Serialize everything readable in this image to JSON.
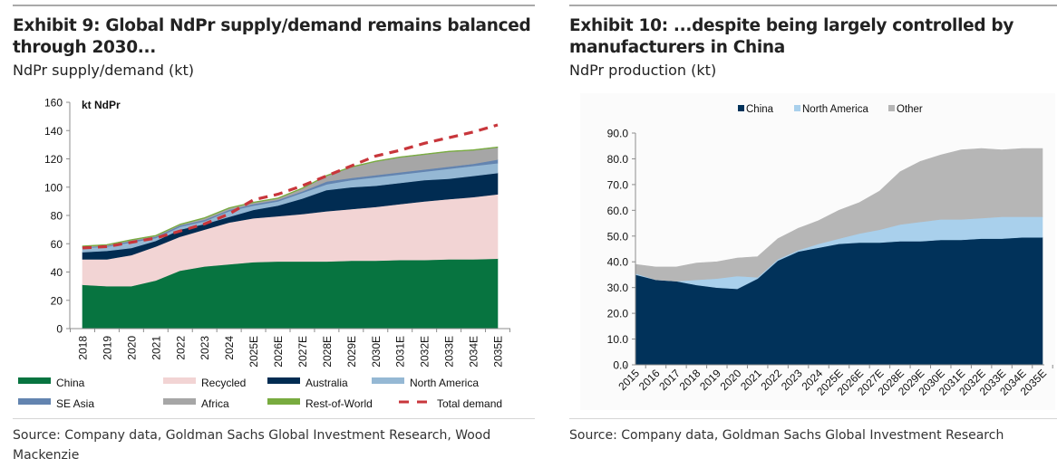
{
  "left": {
    "title": "Exhibit 9: Global NdPr supply/demand remains balanced through 2030...",
    "title_line1": "Exhibit 9: Global NdPr supply/demand remains balanced",
    "title_line2": "through 2030...",
    "subtitle": "NdPr supply/demand (kt)",
    "source": "Source: Company data, Goldman Sachs Global Investment Research, Wood Mackenzie"
  },
  "right": {
    "title": "Exhibit 10: ...despite being largely controlled by manufacturers in China",
    "title_line1": "Exhibit 10: ...despite being largely controlled by",
    "title_line2": "manufacturers in China",
    "subtitle": "NdPr production (kt)",
    "source": "Source: Company data, Goldman Sachs Global Investment Research"
  },
  "chart_data": [
    {
      "type": "area",
      "stacked": true,
      "title": "Exhibit 9: Global NdPr supply/demand remains balanced through 2030...",
      "subtitle": "NdPr supply/demand (kt)",
      "unit_label": "kt NdPr",
      "xlabel": "",
      "ylabel": "kt NdPr",
      "ylim": [
        0,
        160
      ],
      "yticks": [
        "0",
        "20",
        "40",
        "60",
        "80",
        "100",
        "120",
        "140",
        "160"
      ],
      "grid": false,
      "legend_position": "bottom",
      "categories": [
        "2018",
        "2019",
        "2020",
        "2021",
        "2022",
        "2023",
        "2024",
        "2025E",
        "2026E",
        "2027E",
        "2028E",
        "2029E",
        "2030E",
        "2031E",
        "2032E",
        "2033E",
        "2034E",
        "2035E"
      ],
      "series": [
        {
          "name": "China",
          "color": "#077440",
          "values": [
            31,
            30,
            30,
            34,
            41,
            44,
            45.5,
            47,
            47.5,
            47.5,
            47.5,
            48,
            48,
            48.5,
            48.5,
            49,
            49,
            49.5
          ]
        },
        {
          "name": "Recycled",
          "color": "#f2d4d4",
          "values": [
            18,
            19,
            22,
            24,
            24,
            26,
            29.5,
            31,
            32,
            33.5,
            35.5,
            36.5,
            38,
            39.5,
            41.5,
            42.5,
            44,
            45.5
          ]
        },
        {
          "name": "Australia",
          "color": "#012c52",
          "values": [
            5,
            6,
            5,
            4,
            5,
            4,
            4,
            6,
            7.5,
            11,
            15,
            15.5,
            15,
            15,
            15,
            14.5,
            15,
            15
          ]
        },
        {
          "name": "North America",
          "color": "#95b8d4",
          "values": [
            3,
            3,
            4,
            2,
            2,
            2,
            4,
            3,
            3,
            4,
            4,
            5,
            6,
            6,
            6,
            7,
            7,
            7
          ]
        },
        {
          "name": "SE Asia",
          "color": "#6384b0",
          "values": [
            0.5,
            0.5,
            1,
            1,
            1,
            1,
            1,
            1,
            1,
            1,
            2,
            1.5,
            1.5,
            1.5,
            1.5,
            1.5,
            1.5,
            2.5
          ]
        },
        {
          "name": "Africa",
          "color": "#a6a6a6",
          "values": [
            0.5,
            0.5,
            0.5,
            0.5,
            0.5,
            1,
            1,
            1,
            1,
            2,
            4,
            7.5,
            9.5,
            10.5,
            10.5,
            10.5,
            9.5,
            8.5
          ]
        },
        {
          "name": "Rest-of-World",
          "color": "#78ab3f",
          "values": [
            0.5,
            0.5,
            0.5,
            0.5,
            0.5,
            0.5,
            0.5,
            0.5,
            0.5,
            0.5,
            0.5,
            0.5,
            0.5,
            0.5,
            0.5,
            0.5,
            0.5,
            0.5
          ]
        }
      ],
      "line_series": [
        {
          "name": "Total demand",
          "color": "#c8363b",
          "style": "dashed",
          "values": [
            57,
            58,
            61,
            64,
            69,
            74,
            81,
            91,
            95,
            101,
            108,
            115,
            122,
            126,
            131,
            135,
            139,
            144
          ]
        }
      ],
      "legend": [
        "China",
        "Recycled",
        "Australia",
        "North America",
        "SE Asia",
        "Africa",
        "Rest-of-World",
        "Total demand"
      ]
    },
    {
      "type": "area",
      "stacked": true,
      "title": "Exhibit 10: ...despite being largely controlled by manufacturers in China",
      "subtitle": "NdPr production (kt)",
      "xlabel": "",
      "ylabel": "",
      "ylim": [
        0,
        90
      ],
      "yticks": [
        "0.0",
        "10.0",
        "20.0",
        "30.0",
        "40.0",
        "50.0",
        "60.0",
        "70.0",
        "80.0",
        "90.0"
      ],
      "grid": false,
      "legend_position": "top",
      "categories": [
        "2015",
        "2016",
        "2017",
        "2018",
        "2019",
        "2020",
        "2021",
        "2022",
        "2023",
        "2024",
        "2025E",
        "2026E",
        "2027E",
        "2028E",
        "2029E",
        "2030E",
        "2031E",
        "2032E",
        "2033E",
        "2034E",
        "2035E"
      ],
      "series": [
        {
          "name": "China",
          "color": "#01325a",
          "values": [
            35,
            33,
            32.5,
            31,
            30,
            29.5,
            33.5,
            40.5,
            44,
            45.5,
            47,
            47.5,
            47.5,
            48,
            48,
            48.5,
            48.5,
            49,
            49,
            49.5,
            49.5
          ]
        },
        {
          "name": "North America",
          "color": "#a9d0ec",
          "values": [
            0.5,
            0,
            0,
            2,
            3.5,
            5,
            0.5,
            0.5,
            0.5,
            1.5,
            2,
            3.5,
            5,
            6.5,
            7.5,
            8,
            8,
            8,
            8.5,
            8,
            8
          ]
        },
        {
          "name": "Other",
          "color": "#b6b6b6",
          "values": [
            3.5,
            5,
            5.5,
            6.5,
            6.5,
            7,
            8,
            8,
            8.5,
            9,
            11,
            12,
            15,
            20.5,
            23.5,
            25,
            27,
            27,
            26,
            26.5,
            26.5
          ]
        }
      ],
      "legend": [
        "China",
        "North America",
        "Other"
      ]
    }
  ]
}
